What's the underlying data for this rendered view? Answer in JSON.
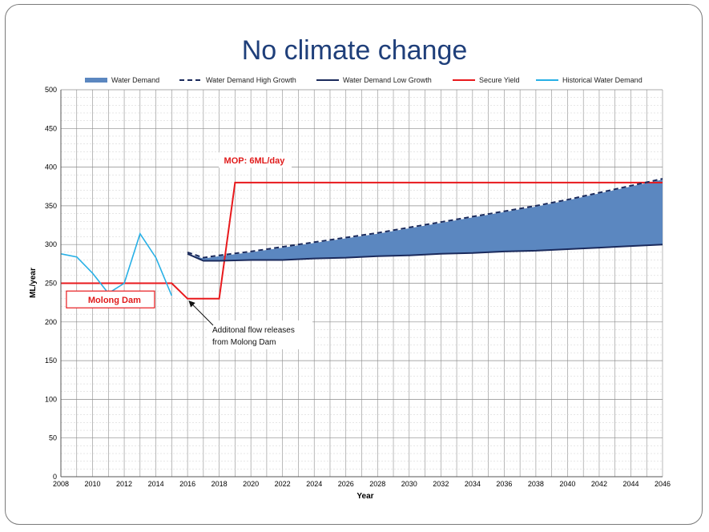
{
  "slide": {
    "title": "No climate change"
  },
  "chart_data": {
    "type": "line",
    "title": "No climate change",
    "xlabel": "Year",
    "ylabel": "ML/year",
    "xlim": [
      2008,
      2046
    ],
    "ylim": [
      0,
      500
    ],
    "x_ticks": [
      2008,
      2010,
      2012,
      2014,
      2016,
      2018,
      2020,
      2022,
      2024,
      2026,
      2028,
      2030,
      2032,
      2034,
      2036,
      2038,
      2040,
      2042,
      2044,
      2046
    ],
    "y_ticks": [
      0,
      50,
      100,
      150,
      200,
      250,
      300,
      350,
      400,
      450,
      500
    ],
    "grid": true,
    "legend_position": "top",
    "series": [
      {
        "name": "Water Demand",
        "style": "area-band",
        "color": "#5b87c0",
        "x": [
          2016,
          2017,
          2018,
          2020,
          2022,
          2024,
          2026,
          2028,
          2030,
          2032,
          2034,
          2036,
          2038,
          2040,
          2042,
          2044,
          2046
        ],
        "upper": [
          288,
          282,
          285,
          290,
          296,
          302,
          308,
          314,
          321,
          328,
          335,
          342,
          349,
          357,
          366,
          375,
          384
        ],
        "lower": [
          288,
          279,
          279,
          280,
          280,
          282,
          283,
          285,
          286,
          288,
          289,
          291,
          292,
          294,
          296,
          298,
          300
        ]
      },
      {
        "name": "Water Demand High Growth",
        "style": "dashed",
        "color": "#1a2a5c",
        "x": [
          2016,
          2017,
          2018,
          2020,
          2022,
          2024,
          2026,
          2028,
          2030,
          2032,
          2034,
          2036,
          2038,
          2040,
          2042,
          2044,
          2046
        ],
        "values": [
          290,
          283,
          286,
          291,
          297,
          303,
          309,
          315,
          322,
          329,
          336,
          343,
          350,
          358,
          367,
          376,
          385
        ]
      },
      {
        "name": "Water Demand Low Growth",
        "style": "solid",
        "color": "#1a2a5c",
        "x": [
          2016,
          2017,
          2018,
          2020,
          2022,
          2024,
          2026,
          2028,
          2030,
          2032,
          2034,
          2036,
          2038,
          2040,
          2042,
          2044,
          2046
        ],
        "values": [
          288,
          279,
          279,
          280,
          280,
          282,
          283,
          285,
          286,
          288,
          289,
          291,
          292,
          294,
          296,
          298,
          300
        ]
      },
      {
        "name": "Secure Yield",
        "style": "solid",
        "color": "#e8191c",
        "x": [
          2008,
          2015,
          2016,
          2018,
          2019,
          2046
        ],
        "values": [
          250,
          250,
          230,
          230,
          380,
          380
        ]
      },
      {
        "name": "Historical Water Demand",
        "style": "solid",
        "color": "#27b0e6",
        "x": [
          2008,
          2009,
          2010,
          2011,
          2012,
          2013,
          2014,
          2015
        ],
        "values": [
          288,
          284,
          263,
          237,
          250,
          314,
          283,
          234
        ]
      }
    ],
    "annotations": {
      "mop": {
        "text": "MOP: 6ML/day",
        "x": 2018.3,
        "y": 405
      },
      "molong_dam": {
        "text": "Molong Dam",
        "x": 2008.4,
        "y": 213
      },
      "flow_line1": "Additonal flow releases",
      "flow_line2": "from Molong Dam",
      "flow_arrow_target": {
        "x": 2016,
        "y": 230
      }
    }
  }
}
